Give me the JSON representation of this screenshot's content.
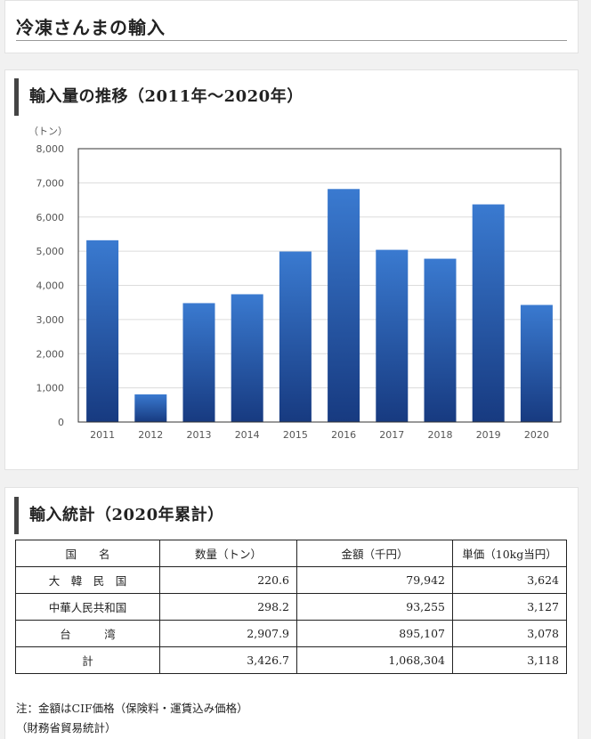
{
  "page_title": "冷凍さんまの輸入",
  "section1": {
    "heading": "輸入量の推移（2011年〜2020年）"
  },
  "chart_data": {
    "type": "bar",
    "ylabel": "（トン）",
    "categories": [
      "2011",
      "2012",
      "2013",
      "2014",
      "2015",
      "2016",
      "2017",
      "2018",
      "2019",
      "2020"
    ],
    "values": [
      5320,
      810,
      3480,
      3740,
      4990,
      6820,
      5040,
      4780,
      6370,
      3427
    ],
    "ylim": [
      0,
      8000
    ],
    "yticks": [
      0,
      1000,
      2000,
      3000,
      4000,
      5000,
      6000,
      7000,
      8000
    ],
    "ytick_labels": [
      "0",
      "1,000",
      "2,000",
      "3,000",
      "4,000",
      "5,000",
      "6,000",
      "7,000",
      "8,000"
    ],
    "grid": true,
    "bar_color_top": "#3a7ad0",
    "bar_color_bottom": "#173a80"
  },
  "section2": {
    "heading": "輸入統計（2020年累計）",
    "columns": [
      "国　　名",
      "数量（トン）",
      "金額（千円）",
      "単価（10kg当円）"
    ],
    "rows": [
      [
        "大　韓　民　国",
        "220.6",
        "79,942",
        "3,624"
      ],
      [
        "中華人民共和国",
        "298.2",
        "93,255",
        "3,127"
      ],
      [
        "台　　　湾",
        "2,907.9",
        "895,107",
        "3,078"
      ],
      [
        "計",
        "3,426.7",
        "1,068,304",
        "3,118"
      ]
    ],
    "note1": "注：金額はCIF価格（保険料・運賃込み価格）",
    "note2": "（財務省貿易統計）"
  }
}
